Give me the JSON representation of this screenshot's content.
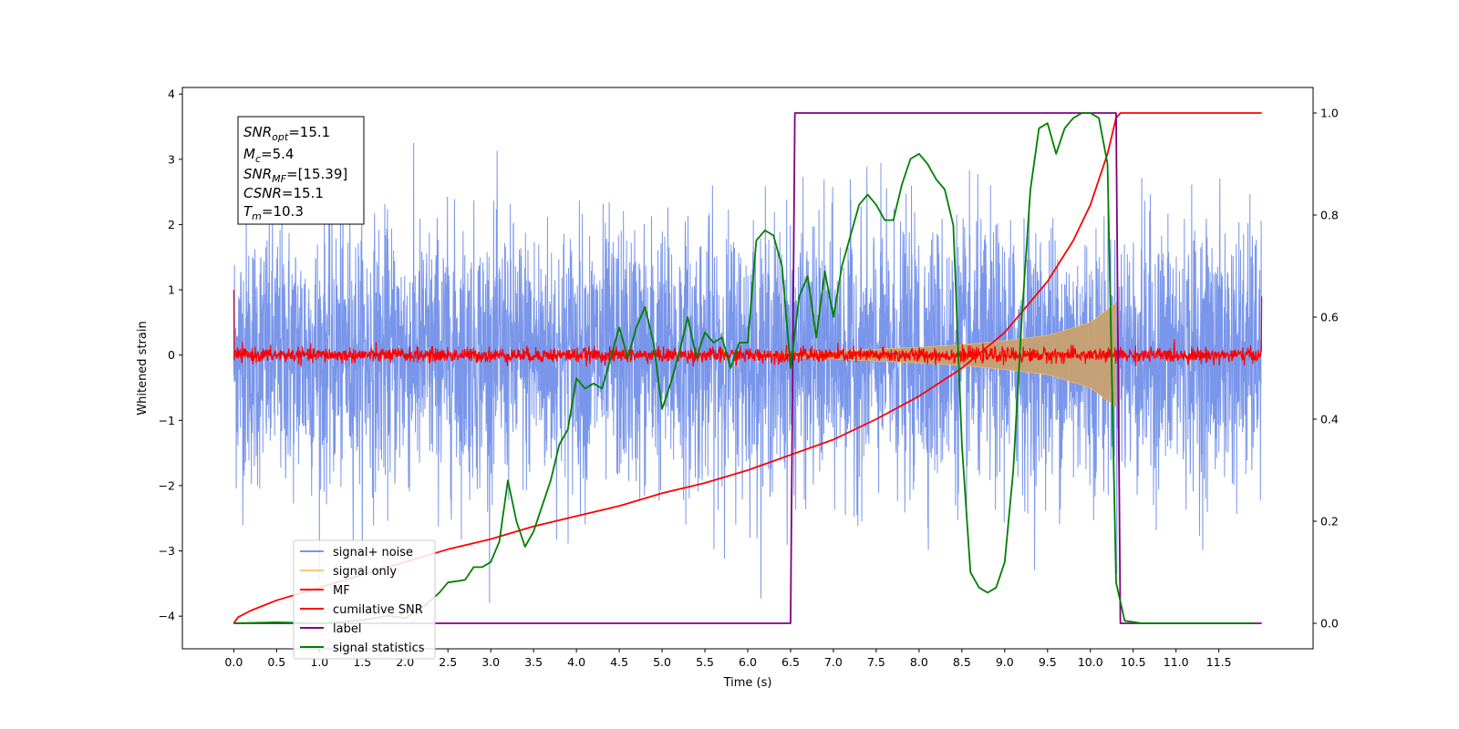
{
  "chart_data": {
    "type": "line",
    "xlabel": "Time (s)",
    "ylabel_left": "Whitened strain",
    "ylabel_right": "",
    "xlim": [
      -0.6,
      12.6
    ],
    "ylim_left": [
      -4.5,
      4.1
    ],
    "ylim_right": [
      -0.05,
      1.05
    ],
    "x_ticks": [
      0.0,
      0.5,
      1.0,
      1.5,
      2.0,
      2.5,
      3.0,
      3.5,
      4.0,
      4.5,
      5.0,
      5.5,
      6.0,
      6.5,
      7.0,
      7.5,
      8.0,
      8.5,
      9.0,
      9.5,
      10.0,
      10.5,
      11.0,
      11.5
    ],
    "x_tick_labels": [
      "0.0",
      "0.5",
      "1.0",
      "1.5",
      "2.0",
      "2.5",
      "3.0",
      "3.5",
      "4.0",
      "4.5",
      "5.0",
      "5.5",
      "6.0",
      "6.5",
      "7.0",
      "7.5",
      "8.0",
      "8.5",
      "9.0",
      "9.5",
      "10.0",
      "10.5",
      "11.0",
      "11.5"
    ],
    "y_ticks_left": [
      -4,
      -3,
      -2,
      -1,
      0,
      1,
      2,
      3,
      4
    ],
    "y_tick_labels_left": [
      "−4",
      "−3",
      "−2",
      "−1",
      "0",
      "1",
      "2",
      "3",
      "4"
    ],
    "y_ticks_right": [
      0.0,
      0.2,
      0.4,
      0.6,
      0.8,
      1.0
    ],
    "y_tick_labels_right": [
      "0.0",
      "0.2",
      "0.4",
      "0.6",
      "0.8",
      "1.0"
    ],
    "grid": false,
    "legend_position": "lower-left",
    "annotation": {
      "lines": [
        {
          "base": "SNR",
          "sub": "opt",
          "value": "=15.1"
        },
        {
          "base": "M",
          "sub": "c",
          "value": "=5.4"
        },
        {
          "base": "SNR",
          "sub": "MF",
          "value": "=[15.39]"
        },
        {
          "base": "CSNR",
          "sub": "",
          "value": "=15.1"
        },
        {
          "base": "T",
          "sub": "m",
          "value": "=10.3"
        }
      ]
    },
    "series": [
      {
        "name": "signal+ noise",
        "color": "#4169e1",
        "axis": "left",
        "kind": "noise",
        "x_range": [
          0.0,
          12.0
        ],
        "typical_amplitude": 1.6,
        "approx_min": -3.8,
        "approx_max": 3.7
      },
      {
        "name": "signal only",
        "color": "#f5c46b",
        "axis": "left",
        "kind": "chirp",
        "x_range": [
          6.0,
          10.3
        ],
        "envelope_x": [
          6.0,
          7.0,
          8.0,
          8.5,
          9.0,
          9.5,
          10.0,
          10.2,
          10.3
        ],
        "envelope_y": [
          0.02,
          0.06,
          0.12,
          0.16,
          0.22,
          0.3,
          0.5,
          0.7,
          0.8
        ]
      },
      {
        "name": "MF",
        "color": "#ff0000",
        "axis": "left",
        "kind": "noise",
        "x_range": [
          0.0,
          12.0
        ],
        "typical_amplitude": 0.08,
        "edge_values": [
          1.0,
          0.9
        ]
      },
      {
        "name": "cumilative SNR",
        "color": "#ff0000",
        "axis": "right",
        "x": [
          0.0,
          0.05,
          0.2,
          0.5,
          1.0,
          1.5,
          2.0,
          2.5,
          3.0,
          3.5,
          4.0,
          4.5,
          5.0,
          5.5,
          6.0,
          6.5,
          7.0,
          7.5,
          8.0,
          8.5,
          9.0,
          9.5,
          9.8,
          10.0,
          10.1,
          10.2,
          10.3,
          10.35,
          11.0,
          11.5,
          12.0
        ],
        "y": [
          0.0,
          0.012,
          0.025,
          0.045,
          0.07,
          0.095,
          0.12,
          0.145,
          0.165,
          0.19,
          0.21,
          0.23,
          0.255,
          0.275,
          0.3,
          0.33,
          0.36,
          0.4,
          0.445,
          0.5,
          0.57,
          0.67,
          0.75,
          0.82,
          0.87,
          0.92,
          0.99,
          1.0,
          1.0,
          1.0,
          1.0
        ]
      },
      {
        "name": "label",
        "color": "#800080",
        "axis": "right",
        "x": [
          0.0,
          6.5,
          6.55,
          10.3,
          10.35,
          12.0
        ],
        "y": [
          0.0,
          0.0,
          1.0,
          1.0,
          0.0,
          0.0
        ]
      },
      {
        "name": "signal statistics",
        "color": "#008000",
        "axis": "right",
        "x": [
          0.0,
          0.5,
          1.0,
          1.5,
          1.8,
          2.0,
          2.2,
          2.4,
          2.5,
          2.7,
          2.8,
          2.9,
          3.0,
          3.1,
          3.2,
          3.3,
          3.4,
          3.5,
          3.6,
          3.7,
          3.8,
          3.9,
          4.0,
          4.1,
          4.2,
          4.3,
          4.4,
          4.5,
          4.6,
          4.7,
          4.8,
          4.9,
          5.0,
          5.1,
          5.2,
          5.3,
          5.4,
          5.5,
          5.6,
          5.7,
          5.8,
          5.9,
          6.0,
          6.1,
          6.2,
          6.3,
          6.4,
          6.5,
          6.6,
          6.7,
          6.8,
          6.9,
          7.0,
          7.1,
          7.2,
          7.3,
          7.4,
          7.5,
          7.6,
          7.7,
          7.8,
          7.9,
          8.0,
          8.1,
          8.2,
          8.3,
          8.4,
          8.5,
          8.6,
          8.7,
          8.8,
          8.9,
          9.0,
          9.1,
          9.2,
          9.3,
          9.4,
          9.5,
          9.6,
          9.7,
          9.8,
          9.9,
          10.0,
          10.1,
          10.2,
          10.3,
          10.4,
          10.6,
          11.0,
          11.5,
          11.9
        ],
        "y": [
          0.0,
          0.002,
          0.0,
          0.006,
          0.015,
          0.01,
          0.03,
          0.06,
          0.08,
          0.085,
          0.11,
          0.11,
          0.12,
          0.16,
          0.28,
          0.2,
          0.15,
          0.18,
          0.23,
          0.28,
          0.35,
          0.38,
          0.48,
          0.46,
          0.47,
          0.46,
          0.52,
          0.58,
          0.52,
          0.58,
          0.62,
          0.55,
          0.42,
          0.47,
          0.53,
          0.6,
          0.52,
          0.57,
          0.55,
          0.56,
          0.5,
          0.55,
          0.55,
          0.75,
          0.77,
          0.76,
          0.7,
          0.5,
          0.64,
          0.68,
          0.56,
          0.69,
          0.6,
          0.7,
          0.76,
          0.82,
          0.84,
          0.82,
          0.79,
          0.79,
          0.86,
          0.91,
          0.92,
          0.9,
          0.87,
          0.85,
          0.78,
          0.35,
          0.1,
          0.07,
          0.06,
          0.07,
          0.12,
          0.3,
          0.6,
          0.85,
          0.97,
          0.98,
          0.92,
          0.97,
          0.99,
          1.0,
          1.0,
          0.99,
          0.9,
          0.08,
          0.005,
          0.0,
          0.0,
          0.0,
          0.0
        ]
      }
    ]
  }
}
